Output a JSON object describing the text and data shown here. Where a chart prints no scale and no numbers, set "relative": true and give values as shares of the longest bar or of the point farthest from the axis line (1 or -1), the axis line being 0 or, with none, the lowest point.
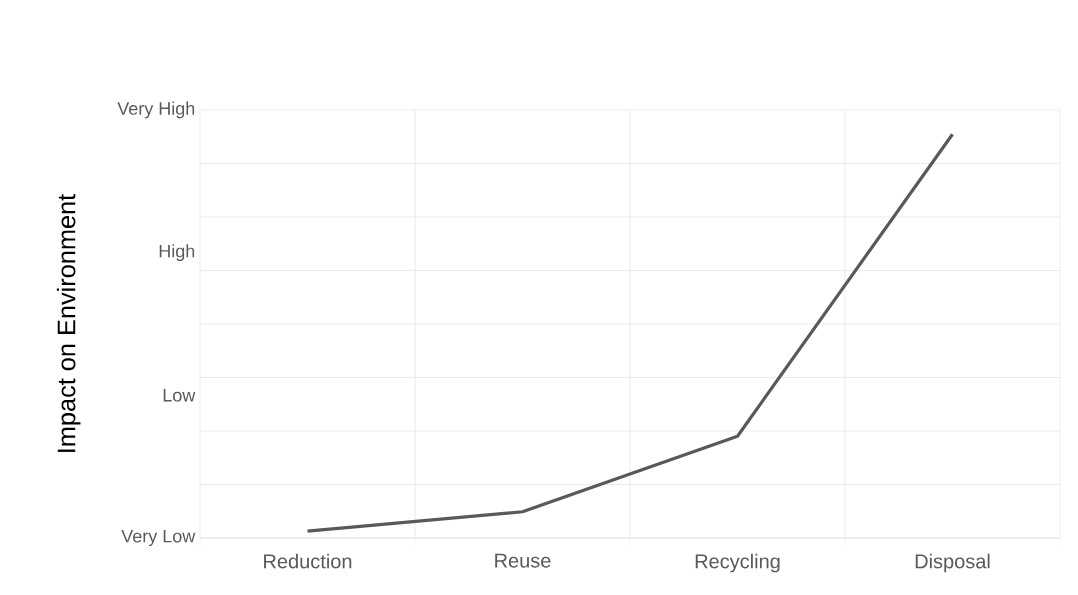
{
  "chart_data": {
    "type": "line",
    "ylabel": "Impact on Environment",
    "relative": true,
    "categories": [
      "Reduction",
      "Reuse",
      "Recycling",
      "Disposal"
    ],
    "series": [
      {
        "color": "#595959",
        "values": [
          0.017,
          0.065,
          0.252,
          1
        ]
      }
    ],
    "annotations": [
      "Very Low",
      "Low",
      "High",
      "Very High"
    ],
    "grid": true,
    "marker": "none",
    "line_style": "solid"
  }
}
